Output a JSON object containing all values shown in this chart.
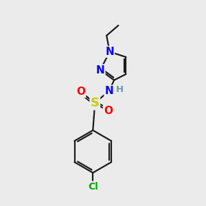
{
  "background_color": "#ebebeb",
  "bond_color": "#1a1a1a",
  "N_color": "#0000ff",
  "O_color": "#ff0000",
  "S_color": "#cccc00",
  "Cl_color": "#00aa00",
  "H_color": "#6699aa",
  "figsize": [
    3.0,
    3.0
  ],
  "dpi": 100,
  "xlim": [
    0,
    10
  ],
  "ylim": [
    0,
    10
  ]
}
